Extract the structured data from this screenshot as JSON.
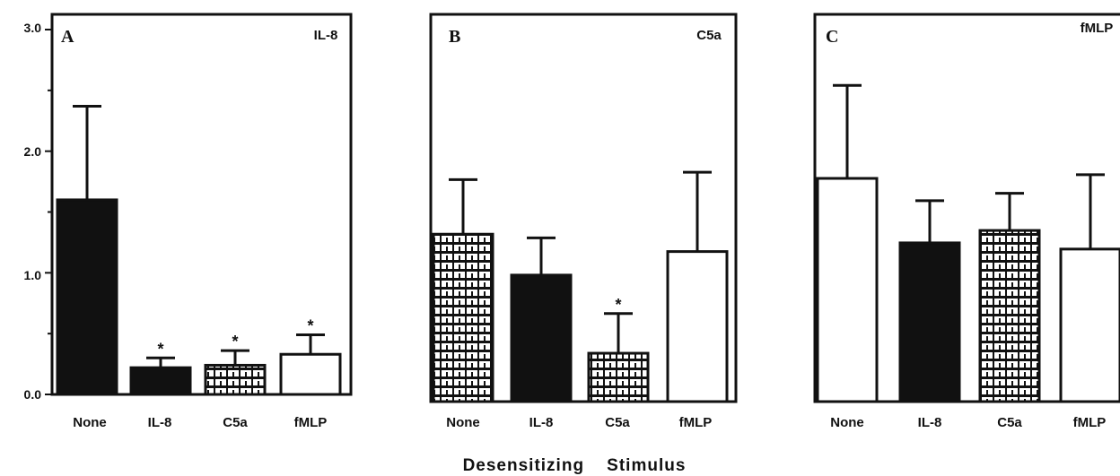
{
  "chart_data": {
    "type": "bar",
    "xlabel": "Desensitizing    Stimulus",
    "ylim": [
      0,
      3
    ],
    "yticks": [
      "0.0",
      "1.0",
      "2.0",
      "3.0"
    ],
    "categories": [
      "None",
      "IL-8",
      "C5a",
      "fMLP"
    ],
    "category_labels": [
      "None",
      "IL-8",
      "C5a",
      "fMLP"
    ],
    "category_fills": [
      "black",
      "black",
      "brick",
      "white"
    ],
    "panels": [
      {
        "letter": "A",
        "title": "IL-8",
        "values": [
          1.6,
          0.22,
          0.24,
          0.33
        ],
        "errors": [
          0.77,
          0.08,
          0.12,
          0.16
        ],
        "significant": [
          false,
          true,
          true,
          true
        ],
        "sig_marker": "*",
        "fills": [
          "black",
          "black",
          "brick",
          "white"
        ]
      },
      {
        "letter": "B",
        "title": "C5a",
        "values": [
          1.35,
          1.02,
          0.39,
          1.21
        ],
        "errors": [
          0.44,
          0.3,
          0.32,
          0.64
        ],
        "significant": [
          false,
          false,
          true,
          false
        ],
        "sig_marker": "*",
        "fills": [
          "brick",
          "black",
          "brick",
          "white"
        ]
      },
      {
        "letter": "C",
        "title": "fMLP",
        "values": [
          1.8,
          1.28,
          1.38,
          1.23
        ],
        "errors": [
          0.75,
          0.34,
          0.3,
          0.6
        ],
        "significant": [
          false,
          false,
          false,
          false
        ],
        "sig_marker": "*",
        "fills": [
          "white",
          "black",
          "brick",
          "white"
        ]
      }
    ]
  }
}
